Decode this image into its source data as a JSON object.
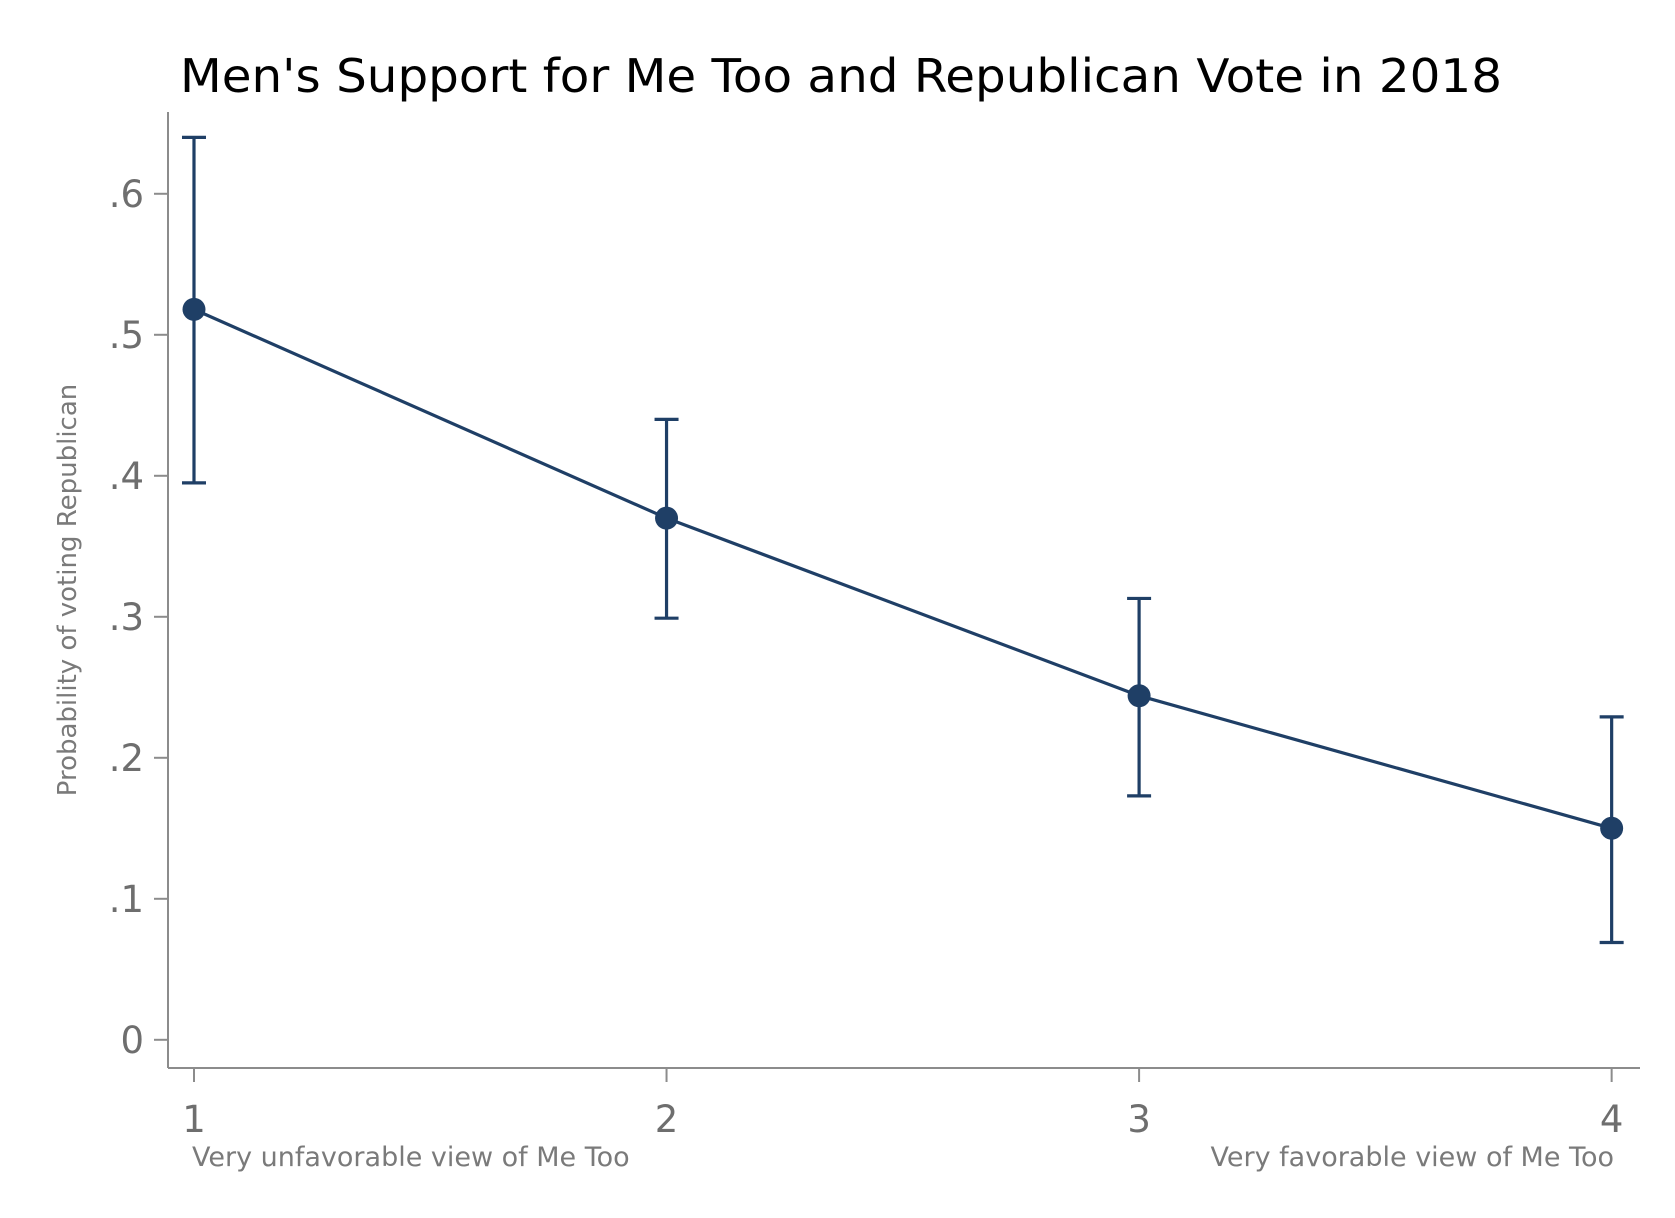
{
  "chart_data": {
    "type": "line",
    "title": "Men's Support for Me Too and Republican Vote in 2018",
    "xlabel": "",
    "ylabel": "Probability of voting Republican",
    "x": [
      1,
      2,
      3,
      4
    ],
    "x_tick_labels": [
      "1",
      "2",
      "3",
      "4"
    ],
    "x_end_labels": {
      "left": "Very unfavorable view of Me Too",
      "right": "Very favorable view of Me Too"
    },
    "y_tick_values": [
      0,
      0.1,
      0.2,
      0.3,
      0.4,
      0.5,
      0.6
    ],
    "y_tick_labels": [
      "0",
      ".1",
      ".2",
      ".3",
      ".4",
      ".5",
      ".6"
    ],
    "xlim": [
      0.945,
      4.06
    ],
    "ylim": [
      -0.02,
      0.658
    ],
    "grid": false,
    "series": [
      {
        "name": "Probability of voting Republican",
        "values": [
          0.518,
          0.37,
          0.244,
          0.15
        ],
        "ci_lower": [
          0.395,
          0.299,
          0.173,
          0.069
        ],
        "ci_upper": [
          0.64,
          0.44,
          0.313,
          0.229
        ],
        "color": "#1f3f66"
      }
    ]
  }
}
